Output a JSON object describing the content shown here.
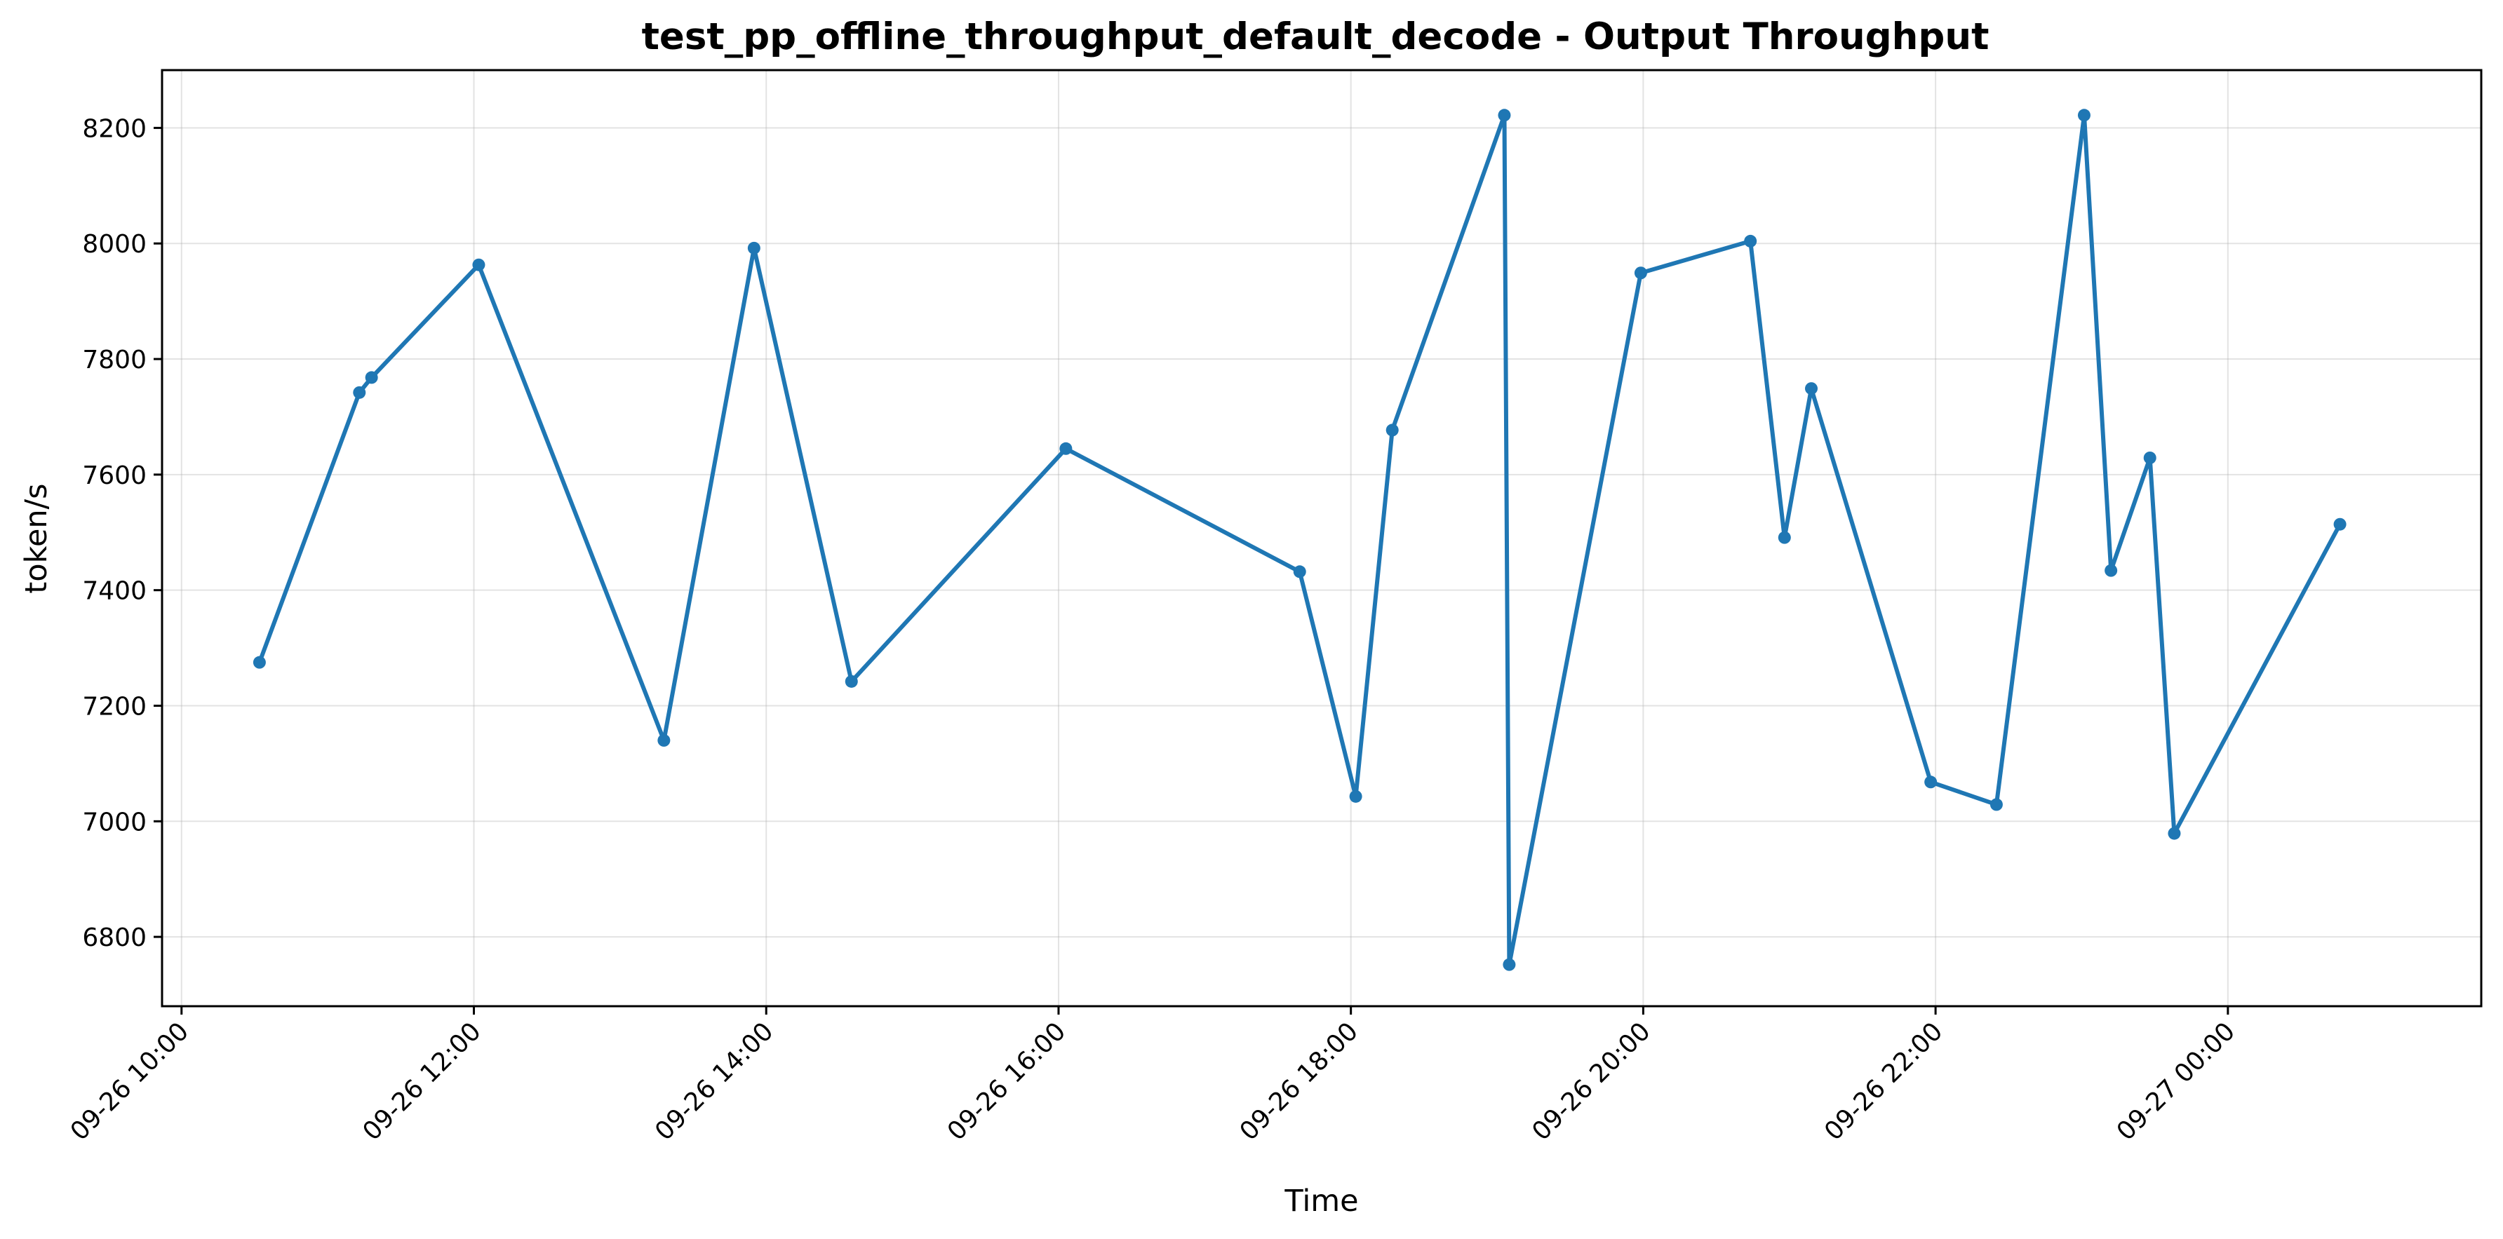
{
  "chart_data": {
    "type": "line",
    "title": "test_pp_offline_throughput_default_decode - Output Throughput",
    "xlabel": "Time",
    "ylabel": "token/s",
    "x_axis": {
      "scale": "time",
      "range": [
        "09-26 09:52",
        "09-27 01:44"
      ],
      "ticks": [
        "09-26 10:00",
        "09-26 12:00",
        "09-26 14:00",
        "09-26 16:00",
        "09-26 18:00",
        "09-26 20:00",
        "09-26 22:00",
        "09-27 00:00"
      ]
    },
    "y_axis": {
      "range": [
        6680,
        8300
      ],
      "ticks": [
        6800,
        7000,
        7200,
        7400,
        7600,
        7800,
        8000,
        8200
      ]
    },
    "grid": true,
    "legend": "none",
    "colors": {
      "series": "#1f77b4",
      "grid": "#b0b0b0",
      "axis": "#000000"
    },
    "series": [
      {
        "x": [
          "09-26 10:32",
          "09-26 11:13",
          "09-26 11:18",
          "09-26 12:02",
          "09-26 13:18",
          "09-26 13:55",
          "09-26 14:35",
          "09-26 16:03",
          "09-26 17:39",
          "09-26 18:02",
          "09-26 18:17",
          "09-26 19:03",
          "09-26 19:05",
          "09-26 19:59",
          "09-26 20:44",
          "09-26 20:58",
          "09-26 21:09",
          "09-26 21:58",
          "09-26 22:25",
          "09-26 23:01",
          "09-26 23:12",
          "09-26 23:28",
          "09-26 23:38",
          "09-27 00:46"
        ],
        "y": [
          7275,
          7742,
          7768,
          7963,
          7140,
          7992,
          7242,
          7645,
          7432,
          7043,
          7677,
          8222,
          6752,
          7949,
          8004,
          7491,
          7749,
          7068,
          7029,
          8222,
          7434,
          7629,
          6979,
          7514
        ]
      }
    ]
  }
}
